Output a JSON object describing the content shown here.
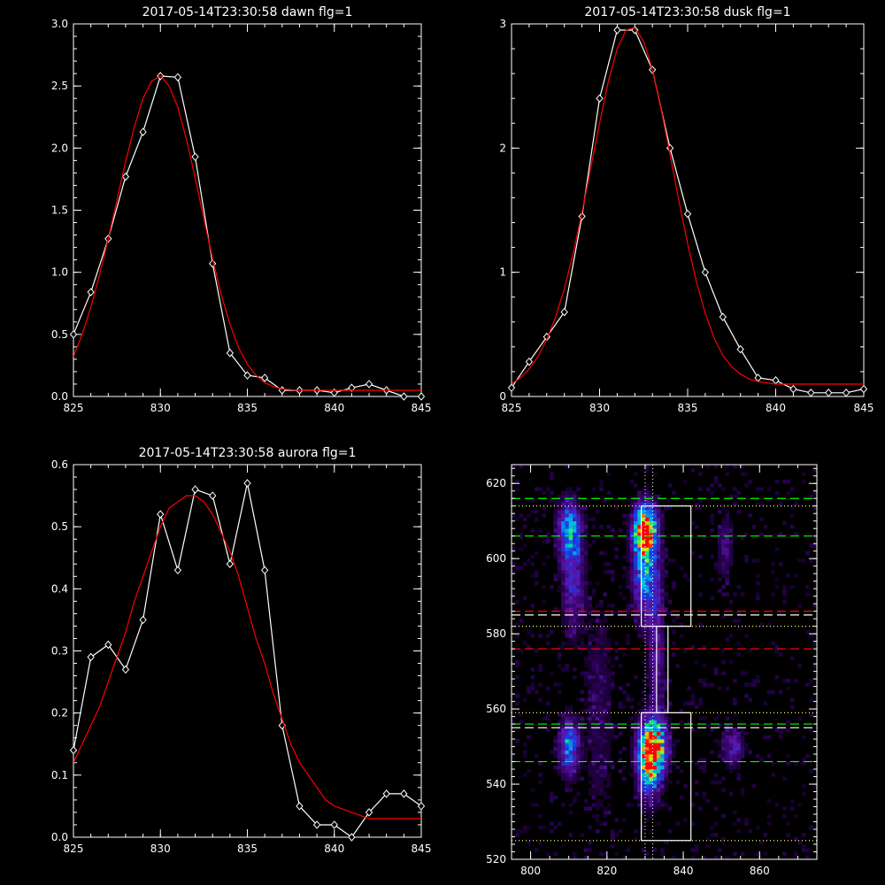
{
  "colors": {
    "background": "#000000",
    "data": "#ffffff",
    "fit": "#ff0000",
    "guide_green": "#00ff00",
    "guide_red": "#ff0000",
    "guide_white": "#ffffff",
    "guide_yellow": "#ffff66"
  },
  "chart_data": [
    {
      "type": "line",
      "title": "2017-05-14T23:30:58 dawn flg=1",
      "xlim": [
        825,
        845
      ],
      "ylim": [
        0,
        3.0
      ],
      "xticks": [
        825,
        830,
        835,
        840,
        845
      ],
      "xtick_labels": [
        "825",
        "830",
        "835",
        "840",
        "845"
      ],
      "yticks": [
        0,
        0.5,
        1.0,
        1.5,
        2.0,
        2.5,
        3.0
      ],
      "ytick_labels": [
        "0.0",
        "0.5",
        "1.0",
        "1.5",
        "2.0",
        "2.5",
        "3.0"
      ],
      "series": [
        {
          "role": "data",
          "x": [
            825,
            826,
            827,
            828,
            829,
            830,
            831,
            832,
            833,
            834,
            835,
            836,
            837,
            838,
            839,
            840,
            841,
            842,
            843,
            844,
            845
          ],
          "y": [
            0.5,
            0.84,
            1.27,
            1.77,
            2.13,
            2.58,
            2.57,
            1.93,
            1.07,
            0.35,
            0.17,
            0.15,
            0.05,
            0.05,
            0.05,
            0.03,
            0.07,
            0.1,
            0.05,
            0.0,
            0.0
          ]
        },
        {
          "role": "fit",
          "x": [
            825,
            825.5,
            826,
            826.5,
            827,
            827.5,
            828,
            828.5,
            829,
            829.5,
            830,
            830.5,
            831,
            831.5,
            832,
            832.5,
            833,
            833.5,
            834,
            834.5,
            835,
            835.5,
            836,
            836.5,
            837,
            838,
            839,
            840,
            841,
            842,
            843,
            844,
            845
          ],
          "y": [
            0.32,
            0.5,
            0.72,
            0.98,
            1.27,
            1.58,
            1.89,
            2.17,
            2.4,
            2.54,
            2.58,
            2.5,
            2.33,
            2.07,
            1.76,
            1.43,
            1.11,
            0.82,
            0.58,
            0.39,
            0.26,
            0.17,
            0.11,
            0.08,
            0.06,
            0.05,
            0.05,
            0.05,
            0.05,
            0.05,
            0.05,
            0.05,
            0.05
          ]
        }
      ]
    },
    {
      "type": "line",
      "title": "2017-05-14T23:30:58 dusk flg=1",
      "xlim": [
        825,
        845
      ],
      "ylim": [
        0,
        3
      ],
      "xticks": [
        825,
        830,
        835,
        840,
        845
      ],
      "xtick_labels": [
        "825",
        "830",
        "835",
        "840",
        "845"
      ],
      "yticks": [
        0,
        1,
        2,
        3
      ],
      "ytick_labels": [
        "0",
        "1",
        "2",
        "3"
      ],
      "series": [
        {
          "role": "data",
          "x": [
            825,
            826,
            827,
            828,
            829,
            830,
            831,
            832,
            833,
            834,
            835,
            836,
            837,
            838,
            839,
            840,
            841,
            842,
            843,
            844,
            845
          ],
          "y": [
            0.07,
            0.28,
            0.48,
            0.68,
            1.45,
            2.4,
            2.95,
            2.95,
            2.63,
            2.0,
            1.47,
            1.0,
            0.64,
            0.38,
            0.15,
            0.13,
            0.06,
            0.03,
            0.03,
            0.03,
            0.06
          ]
        },
        {
          "role": "fit",
          "x": [
            825,
            825.5,
            826,
            826.5,
            827,
            827.5,
            828,
            828.5,
            829,
            829.5,
            830,
            830.5,
            831,
            831.5,
            832,
            832.5,
            833,
            833.5,
            834,
            834.5,
            835,
            835.5,
            836,
            836.5,
            837,
            837.5,
            838,
            838.5,
            839,
            840,
            841,
            842,
            843,
            844,
            845
          ],
          "y": [
            0.1,
            0.15,
            0.22,
            0.32,
            0.46,
            0.64,
            0.87,
            1.15,
            1.48,
            1.84,
            2.2,
            2.54,
            2.8,
            2.95,
            2.97,
            2.86,
            2.63,
            2.31,
            1.95,
            1.58,
            1.23,
            0.92,
            0.67,
            0.47,
            0.33,
            0.24,
            0.18,
            0.14,
            0.12,
            0.1,
            0.1,
            0.1,
            0.1,
            0.1,
            0.1
          ]
        }
      ]
    },
    {
      "type": "line",
      "title": "2017-05-14T23:30:58 aurora flg=1",
      "xlim": [
        825,
        845
      ],
      "ylim": [
        0,
        0.6
      ],
      "xticks": [
        825,
        830,
        835,
        840,
        845
      ],
      "xtick_labels": [
        "825",
        "830",
        "835",
        "840",
        "845"
      ],
      "yticks": [
        0,
        0.1,
        0.2,
        0.3,
        0.4,
        0.5,
        0.6
      ],
      "ytick_labels": [
        "0.0",
        "0.1",
        "0.2",
        "0.3",
        "0.4",
        "0.5",
        "0.6"
      ],
      "series": [
        {
          "role": "data",
          "x": [
            825,
            826,
            827,
            828,
            829,
            830,
            831,
            832,
            833,
            834,
            835,
            836,
            837,
            838,
            839,
            840,
            841,
            842,
            843,
            844,
            845
          ],
          "y": [
            0.14,
            0.29,
            0.31,
            0.27,
            0.35,
            0.52,
            0.43,
            0.56,
            0.55,
            0.44,
            0.57,
            0.43,
            0.18,
            0.05,
            0.02,
            0.02,
            0.0,
            0.04,
            0.07,
            0.07,
            0.05
          ]
        },
        {
          "role": "fit",
          "x": [
            825,
            825.5,
            826,
            826.5,
            827,
            827.5,
            828,
            828.5,
            829,
            829.5,
            830,
            830.5,
            831,
            831.5,
            832,
            832.5,
            833,
            833.5,
            834,
            834.5,
            835,
            835.5,
            836,
            836.5,
            837,
            837.5,
            838,
            838.5,
            839,
            839.5,
            840,
            841,
            842,
            843,
            844,
            845
          ],
          "y": [
            0.12,
            0.15,
            0.18,
            0.21,
            0.25,
            0.29,
            0.33,
            0.38,
            0.42,
            0.46,
            0.5,
            0.53,
            0.54,
            0.55,
            0.55,
            0.54,
            0.52,
            0.49,
            0.46,
            0.42,
            0.37,
            0.32,
            0.28,
            0.23,
            0.19,
            0.15,
            0.12,
            0.1,
            0.08,
            0.06,
            0.05,
            0.04,
            0.03,
            0.03,
            0.03,
            0.03
          ]
        }
      ]
    },
    {
      "type": "heatmap",
      "xlim": [
        795,
        875
      ],
      "ylim": [
        520,
        625
      ],
      "xticks": [
        800,
        820,
        840,
        860
      ],
      "xtick_labels": [
        "800",
        "820",
        "840",
        "860"
      ],
      "yticks": [
        520,
        540,
        560,
        580,
        600,
        620
      ],
      "ytick_labels": [
        "520",
        "540",
        "560",
        "580",
        "600",
        "620"
      ],
      "blobs": [
        {
          "x": 810,
          "y": 608,
          "sx": 2.0,
          "sy": 5.0,
          "amp": 0.55
        },
        {
          "x": 811,
          "y": 595,
          "sx": 2.0,
          "sy": 10.0,
          "amp": 0.35
        },
        {
          "x": 830,
          "y": 608,
          "sx": 2.0,
          "sy": 4.0,
          "amp": 1.0
        },
        {
          "x": 830,
          "y": 598,
          "sx": 2.2,
          "sy": 9.0,
          "amp": 0.6
        },
        {
          "x": 833,
          "y": 575,
          "sx": 1.5,
          "sy": 16.0,
          "amp": 0.25
        },
        {
          "x": 832,
          "y": 550,
          "sx": 2.5,
          "sy": 5.0,
          "amp": 1.0
        },
        {
          "x": 831,
          "y": 544,
          "sx": 2.0,
          "sy": 6.0,
          "amp": 0.5
        },
        {
          "x": 810,
          "y": 550,
          "sx": 1.8,
          "sy": 5.0,
          "amp": 0.55
        },
        {
          "x": 853,
          "y": 550,
          "sx": 2.0,
          "sy": 3.5,
          "amp": 0.3
        },
        {
          "x": 851,
          "y": 603,
          "sx": 1.5,
          "sy": 6.0,
          "amp": 0.2
        },
        {
          "x": 818,
          "y": 560,
          "sx": 3.0,
          "sy": 25.0,
          "amp": 0.12
        }
      ],
      "hlines": [
        {
          "y": 616,
          "color": "#00ff00",
          "style": "dashed"
        },
        {
          "y": 606,
          "color": "#00ff00",
          "style": "dashed"
        },
        {
          "y": 586,
          "color": "#ff0000",
          "style": "dashed"
        },
        {
          "y": 585,
          "color": "#ffffff",
          "style": "dashed"
        },
        {
          "y": 576,
          "color": "#ff0000",
          "style": "dashed"
        },
        {
          "y": 556,
          "color": "#00ff00",
          "style": "dashed"
        },
        {
          "y": 555,
          "color": "#ffffff",
          "style": "dashed"
        },
        {
          "y": 546,
          "color": "#00ff00",
          "style": "dashed"
        },
        {
          "y": 614,
          "color": "#ffff66",
          "style": "dotted"
        },
        {
          "y": 582,
          "color": "#ffff66",
          "style": "dotted"
        },
        {
          "y": 559,
          "color": "#ffff66",
          "style": "dotted"
        },
        {
          "y": 525,
          "color": "#ffff66",
          "style": "dotted"
        }
      ],
      "vlines": [
        {
          "x": 830,
          "color": "#ffffff",
          "style": "dotted"
        },
        {
          "x": 832,
          "color": "#ffffff",
          "style": "dotted"
        }
      ],
      "boxes": [
        {
          "x0": 829,
          "x1": 842,
          "y0": 582,
          "y1": 614
        },
        {
          "x0": 833,
          "x1": 836,
          "y0": 559,
          "y1": 582
        },
        {
          "x0": 829,
          "x1": 842,
          "y0": 525,
          "y1": 559
        }
      ]
    }
  ]
}
